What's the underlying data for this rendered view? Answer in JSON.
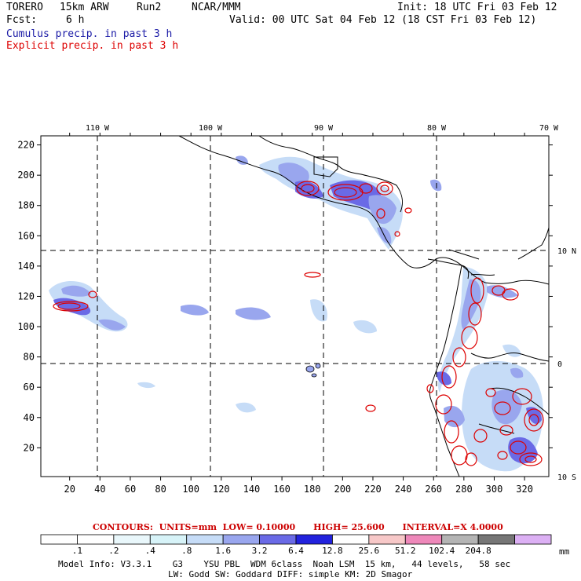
{
  "header": {
    "model": "TORERO",
    "resolution": "15km ARW",
    "run": "Run2",
    "org": "NCAR/MMM",
    "init": "Init: 18 UTC Fri 03 Feb 12",
    "fcst_label": "Fcst:",
    "fcst_value": "6 h",
    "valid": "Valid: 00 UTC Sat 04 Feb 12 (18 CST Fri 03 Feb 12)"
  },
  "fields": {
    "cumulus": {
      "label": "Cumulus precip. in past 3 h",
      "color": "#1a1aa6"
    },
    "explicit": {
      "label": "Explicit precip. in past 3 h",
      "color": "#dd0000"
    }
  },
  "axes": {
    "lon_labels": [
      "110 W",
      "100 W",
      "90 W",
      "80 W",
      "70 W"
    ],
    "lat_labels": [
      "10 N",
      "0",
      "10 S"
    ],
    "x_ticks": [
      "20",
      "40",
      "60",
      "80",
      "100",
      "120",
      "140",
      "160",
      "180",
      "200",
      "220",
      "240",
      "260",
      "280",
      "300",
      "320"
    ],
    "y_ticks": [
      "20",
      "40",
      "60",
      "80",
      "100",
      "120",
      "140",
      "160",
      "180",
      "200",
      "220"
    ]
  },
  "contours": {
    "label": "CONTOURS:",
    "units": "UNITS=mm",
    "low": "LOW= 0.10000",
    "high": "HIGH= 25.600",
    "interval": "INTERVAL=X 4.0000"
  },
  "colorbar": {
    "labels": [
      ".1",
      ".2",
      ".4",
      ".8",
      "1.6",
      "3.2",
      "6.4",
      "12.8",
      "25.6",
      "51.2",
      "102.4",
      "204.8"
    ],
    "units": "mm",
    "colors": [
      "#ffffff",
      "#ffffff",
      "#e9f7fb",
      "#d7f3f8",
      "#c6dcf7",
      "#99a6ee",
      "#6a6ae6",
      "#2222dd",
      "#ffffff",
      "#f7c8c8",
      "#ee88ba",
      "#b4b4b4",
      "#767676",
      "#dcb0f4"
    ]
  },
  "model_info": {
    "line1": "Model Info: V3.3.1    G3    YSU PBL  WDM 6class  Noah LSM  15 km,   44 levels,   58 sec",
    "line2": "LW: Godd SW: Goddard DIFF: simple KM: 2D Smagor"
  }
}
